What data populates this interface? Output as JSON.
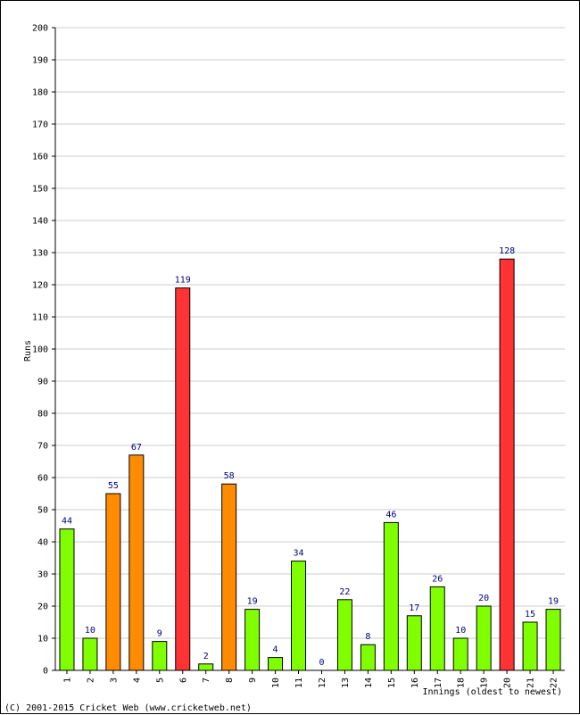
{
  "chart_data": {
    "type": "bar",
    "xlabel": "Innings (oldest to newest)",
    "ylabel": "Runs",
    "ylim": [
      0,
      200
    ],
    "ytick_step": 10,
    "grid": true,
    "categories": [
      "1",
      "2",
      "3",
      "4",
      "5",
      "6",
      "7",
      "8",
      "9",
      "10",
      "11",
      "12",
      "13",
      "14",
      "15",
      "16",
      "17",
      "18",
      "19",
      "20",
      "21",
      "22"
    ],
    "values": [
      44,
      10,
      55,
      67,
      9,
      119,
      2,
      58,
      19,
      4,
      34,
      0,
      22,
      8,
      46,
      17,
      26,
      10,
      20,
      128,
      15,
      19
    ],
    "bar_colors": [
      "#7fff00",
      "#7fff00",
      "#ff8c00",
      "#ff8c00",
      "#7fff00",
      "#ff3333",
      "#7fff00",
      "#ff8c00",
      "#7fff00",
      "#7fff00",
      "#7fff00",
      "#7fff00",
      "#7fff00",
      "#7fff00",
      "#7fff00",
      "#7fff00",
      "#7fff00",
      "#7fff00",
      "#7fff00",
      "#ff3333",
      "#7fff00",
      "#7fff00"
    ],
    "colors": {
      "label_text": "#000080",
      "axis_text": "#000000",
      "grid": "#cccccc",
      "bar_outline": "#000000"
    }
  },
  "footer": {
    "copyright": "(C) 2001-2015 Cricket Web (www.cricketweb.net)"
  }
}
